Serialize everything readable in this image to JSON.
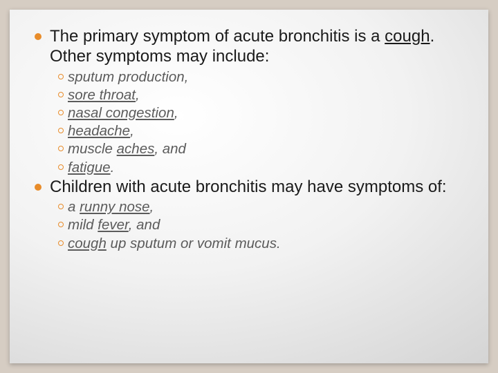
{
  "colors": {
    "page_bg": "#d6cdc3",
    "slide_bg_center": "#ffffff",
    "slide_bg_edge": "#c9c9c9",
    "bullet_fill": "#e88c2a",
    "text_primary": "#1a1a1a",
    "text_secondary": "#5b5b5b"
  },
  "typography": {
    "family": "Verdana",
    "l1_fontsize": 24,
    "l2_fontsize": 20.5,
    "l2_italic": true
  },
  "b1": {
    "pre": "The primary symptom of acute bronchitis is a ",
    "u1": "cough",
    "post": ". Other symptoms may include:"
  },
  "s1a": {
    "t": "sputum production,"
  },
  "s1b": {
    "u": "sore throat",
    "post": ","
  },
  "s1c": {
    "u": "nasal congestion",
    "post": ","
  },
  "s1d": {
    "u": "headache",
    "post": ","
  },
  "s1e": {
    "pre": "muscle ",
    "u": "aches",
    "post": ", and"
  },
  "s1f": {
    "u": "fatigue",
    "post": "."
  },
  "b2": {
    "t": "Children with acute bronchitis may have symptoms of:"
  },
  "s2a": {
    "pre": "a ",
    "u": "runny nose",
    "post": ","
  },
  "s2b": {
    "pre": "mild ",
    "u": "fever",
    "post": ", and"
  },
  "s2c": {
    "u": "cough",
    "post": " up sputum or vomit mucus."
  }
}
